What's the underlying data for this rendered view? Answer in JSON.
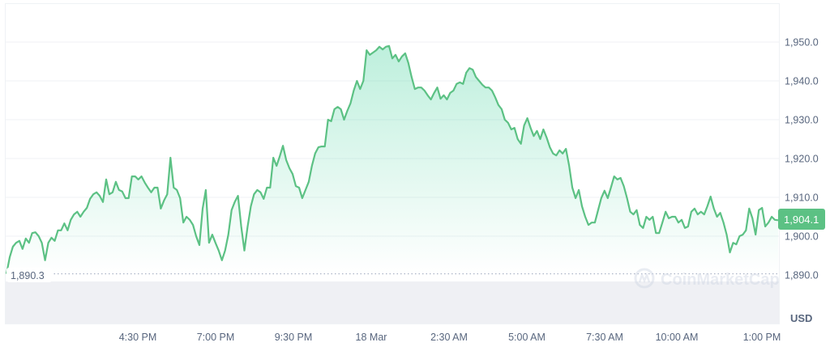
{
  "chart_data": {
    "type": "area",
    "title": "",
    "xlabel": "",
    "ylabel": "USD",
    "ylim": [
      1880,
      1960
    ],
    "yticks": [
      "1,890.0",
      "1,900.0",
      "1,910.0",
      "1,920.0",
      "1,930.0",
      "1,940.0",
      "1,950.0"
    ],
    "ytick_values": [
      1890,
      1900,
      1910,
      1920,
      1930,
      1940,
      1950
    ],
    "xticks": [
      "4:30 PM",
      "7:00 PM",
      "9:30 PM",
      "18 Mar",
      "2:30 AM",
      "5:00 AM",
      "7:30 AM",
      "10:00 AM",
      "1:00 PM"
    ],
    "grid": true,
    "line_color": "#16c784",
    "open_price": 1890.3,
    "open_price_label": "1,890.3",
    "current_price": 1904.1,
    "current_price_label": "1,904.1",
    "current_price_badge_color": "#5cc184",
    "currency_label": "USD",
    "watermark": "CoinMarketCap",
    "values": [
      1890.3,
      1894.6,
      1897.3,
      1898.3,
      1898.8,
      1896.7,
      1899.4,
      1898.3,
      1900.8,
      1901.0,
      1900.0,
      1898.3,
      1893.8,
      1898.3,
      1899.6,
      1898.8,
      1901.5,
      1901.5,
      1903.3,
      1901.5,
      1904.2,
      1905.6,
      1906.3,
      1905.0,
      1906.3,
      1907.3,
      1909.6,
      1910.8,
      1911.3,
      1910.4,
      1908.8,
      1914.6,
      1910.8,
      1911.3,
      1914.0,
      1911.9,
      1911.5,
      1909.8,
      1909.8,
      1915.4,
      1915.4,
      1914.6,
      1915.4,
      1913.8,
      1912.5,
      1911.3,
      1912.5,
      1912.5,
      1907.1,
      1909.2,
      1910.8,
      1920.2,
      1912.5,
      1911.9,
      1909.8,
      1903.5,
      1905.0,
      1904.2,
      1902.9,
      1900.0,
      1897.7,
      1907.1,
      1911.9,
      1898.3,
      1900.4,
      1898.3,
      1896.3,
      1893.8,
      1896.3,
      1900.4,
      1906.7,
      1908.8,
      1910.4,
      1902.5,
      1896.3,
      1902.5,
      1907.7,
      1910.8,
      1911.9,
      1911.3,
      1909.6,
      1912.5,
      1912.5,
      1920.2,
      1918.1,
      1920.6,
      1923.3,
      1919.6,
      1917.5,
      1916.0,
      1912.9,
      1912.5,
      1909.8,
      1911.9,
      1914.0,
      1918.1,
      1921.3,
      1922.9,
      1923.1,
      1923.1,
      1930.0,
      1929.6,
      1932.7,
      1933.3,
      1932.7,
      1930.0,
      1932.3,
      1934.2,
      1937.5,
      1940.0,
      1937.9,
      1940.0,
      1947.9,
      1946.7,
      1947.3,
      1947.9,
      1948.8,
      1948.1,
      1948.8,
      1949.0,
      1945.8,
      1946.7,
      1945.0,
      1946.3,
      1947.1,
      1944.6,
      1941.0,
      1937.9,
      1938.3,
      1938.3,
      1937.5,
      1936.3,
      1935.2,
      1936.9,
      1938.3,
      1935.4,
      1936.3,
      1935.2,
      1936.9,
      1937.5,
      1939.2,
      1939.6,
      1939.2,
      1942.1,
      1943.3,
      1942.9,
      1941.0,
      1940.0,
      1939.0,
      1938.3,
      1938.3,
      1937.5,
      1935.8,
      1933.8,
      1932.7,
      1930.0,
      1929.2,
      1927.5,
      1927.9,
      1925.0,
      1923.8,
      1928.5,
      1930.4,
      1927.9,
      1925.8,
      1927.1,
      1925.0,
      1927.5,
      1925.4,
      1922.9,
      1921.3,
      1920.8,
      1922.1,
      1921.3,
      1922.5,
      1918.1,
      1912.5,
      1909.8,
      1911.9,
      1907.7,
      1905.0,
      1902.9,
      1903.5,
      1903.5,
      1906.7,
      1909.8,
      1911.7,
      1909.8,
      1912.5,
      1915.4,
      1914.6,
      1915.0,
      1912.9,
      1909.8,
      1906.3,
      1905.6,
      1906.7,
      1902.9,
      1902.1,
      1905.0,
      1904.2,
      1905.0,
      1900.8,
      1900.8,
      1903.5,
      1906.3,
      1904.6,
      1905.0,
      1905.0,
      1903.5,
      1904.2,
      1902.1,
      1902.5,
      1906.3,
      1907.1,
      1905.6,
      1906.3,
      1905.6,
      1907.7,
      1910.2,
      1907.1,
      1905.0,
      1906.0,
      1903.5,
      1900.4,
      1895.8,
      1898.3,
      1897.9,
      1900.0,
      1900.4,
      1901.5,
      1907.1,
      1904.6,
      1900.4,
      1906.7,
      1907.3,
      1902.5,
      1903.5,
      1905.0,
      1904.2,
      1904.1
    ]
  }
}
